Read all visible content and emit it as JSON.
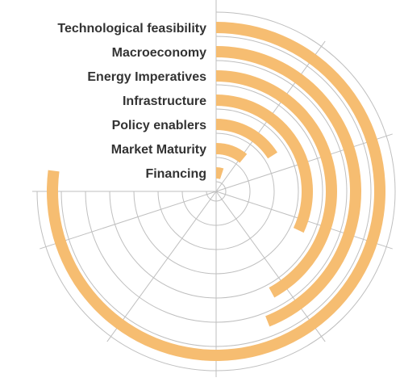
{
  "chart_data": {
    "type": "radial_bar",
    "title": "",
    "direction": "clockwise",
    "start_angle": "top",
    "angular_max": 100,
    "bar_color": "#f6bd71",
    "grid_color": "#bfbfbf",
    "grid": true,
    "categories": [
      "Technological feasibility",
      "Macroeconomy",
      "Energy Imperatives",
      "Infrastructure",
      "Policy enablers",
      "Market Maturity",
      "Financing"
    ],
    "values": [
      77,
      44,
      42,
      32,
      16,
      11,
      5
    ]
  }
}
